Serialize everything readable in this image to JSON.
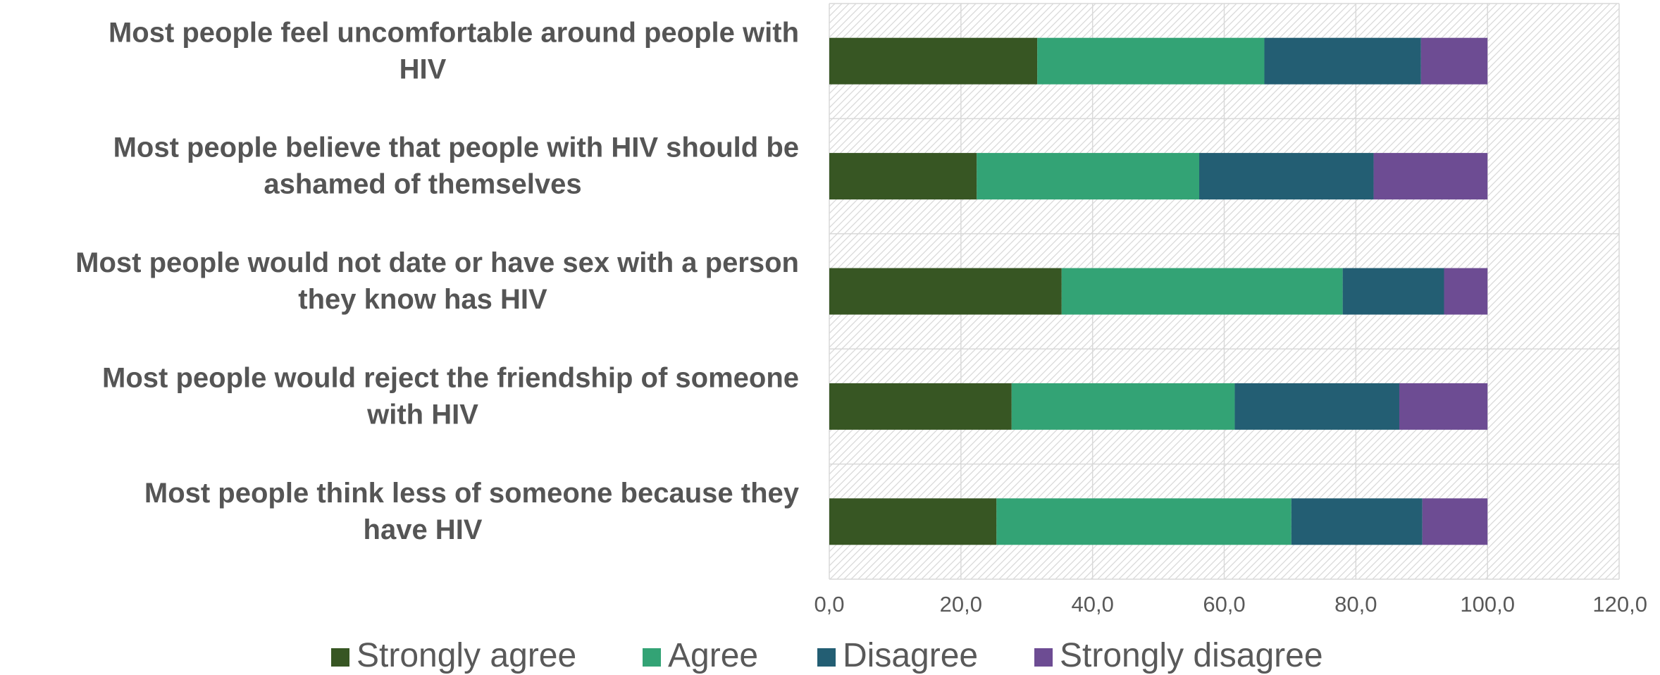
{
  "chart_data": {
    "type": "bar",
    "orientation": "horizontal",
    "stacked": true,
    "title": "",
    "xlabel": "",
    "ylabel": "",
    "xlim": [
      0,
      120
    ],
    "x_ticks": [
      0,
      20,
      40,
      60,
      80,
      100,
      120
    ],
    "x_tick_labels": [
      "0,0",
      "20,0",
      "40,0",
      "60,0",
      "80,0",
      "100,0",
      "120,0"
    ],
    "grid": true,
    "legend_position": "bottom",
    "categories": [
      [
        "Most people feel uncomfortable around people with",
        "HIV"
      ],
      [
        "Most people believe that people with HIV should be",
        "ashamed of themselves"
      ],
      [
        "Most people would not date or have sex with a person",
        "they know has HIV"
      ],
      [
        "Most people would reject the friendship of someone",
        "with HIV"
      ],
      [
        "Most people think less of someone because they",
        "have HIV"
      ]
    ],
    "series": [
      {
        "name": "Strongly agree",
        "color": "#375623",
        "values": [
          31.6,
          22.4,
          35.3,
          27.7,
          25.4
        ]
      },
      {
        "name": "Agree",
        "color": "#33A375",
        "values": [
          34.5,
          33.8,
          42.7,
          33.9,
          44.8
        ]
      },
      {
        "name": "Disagree",
        "color": "#235E73",
        "values": [
          23.8,
          26.5,
          15.4,
          25.0,
          19.9
        ]
      },
      {
        "name": "Strongly disagree",
        "color": "#6D4C93",
        "values": [
          10.1,
          17.3,
          6.6,
          13.4,
          9.9
        ]
      }
    ]
  }
}
